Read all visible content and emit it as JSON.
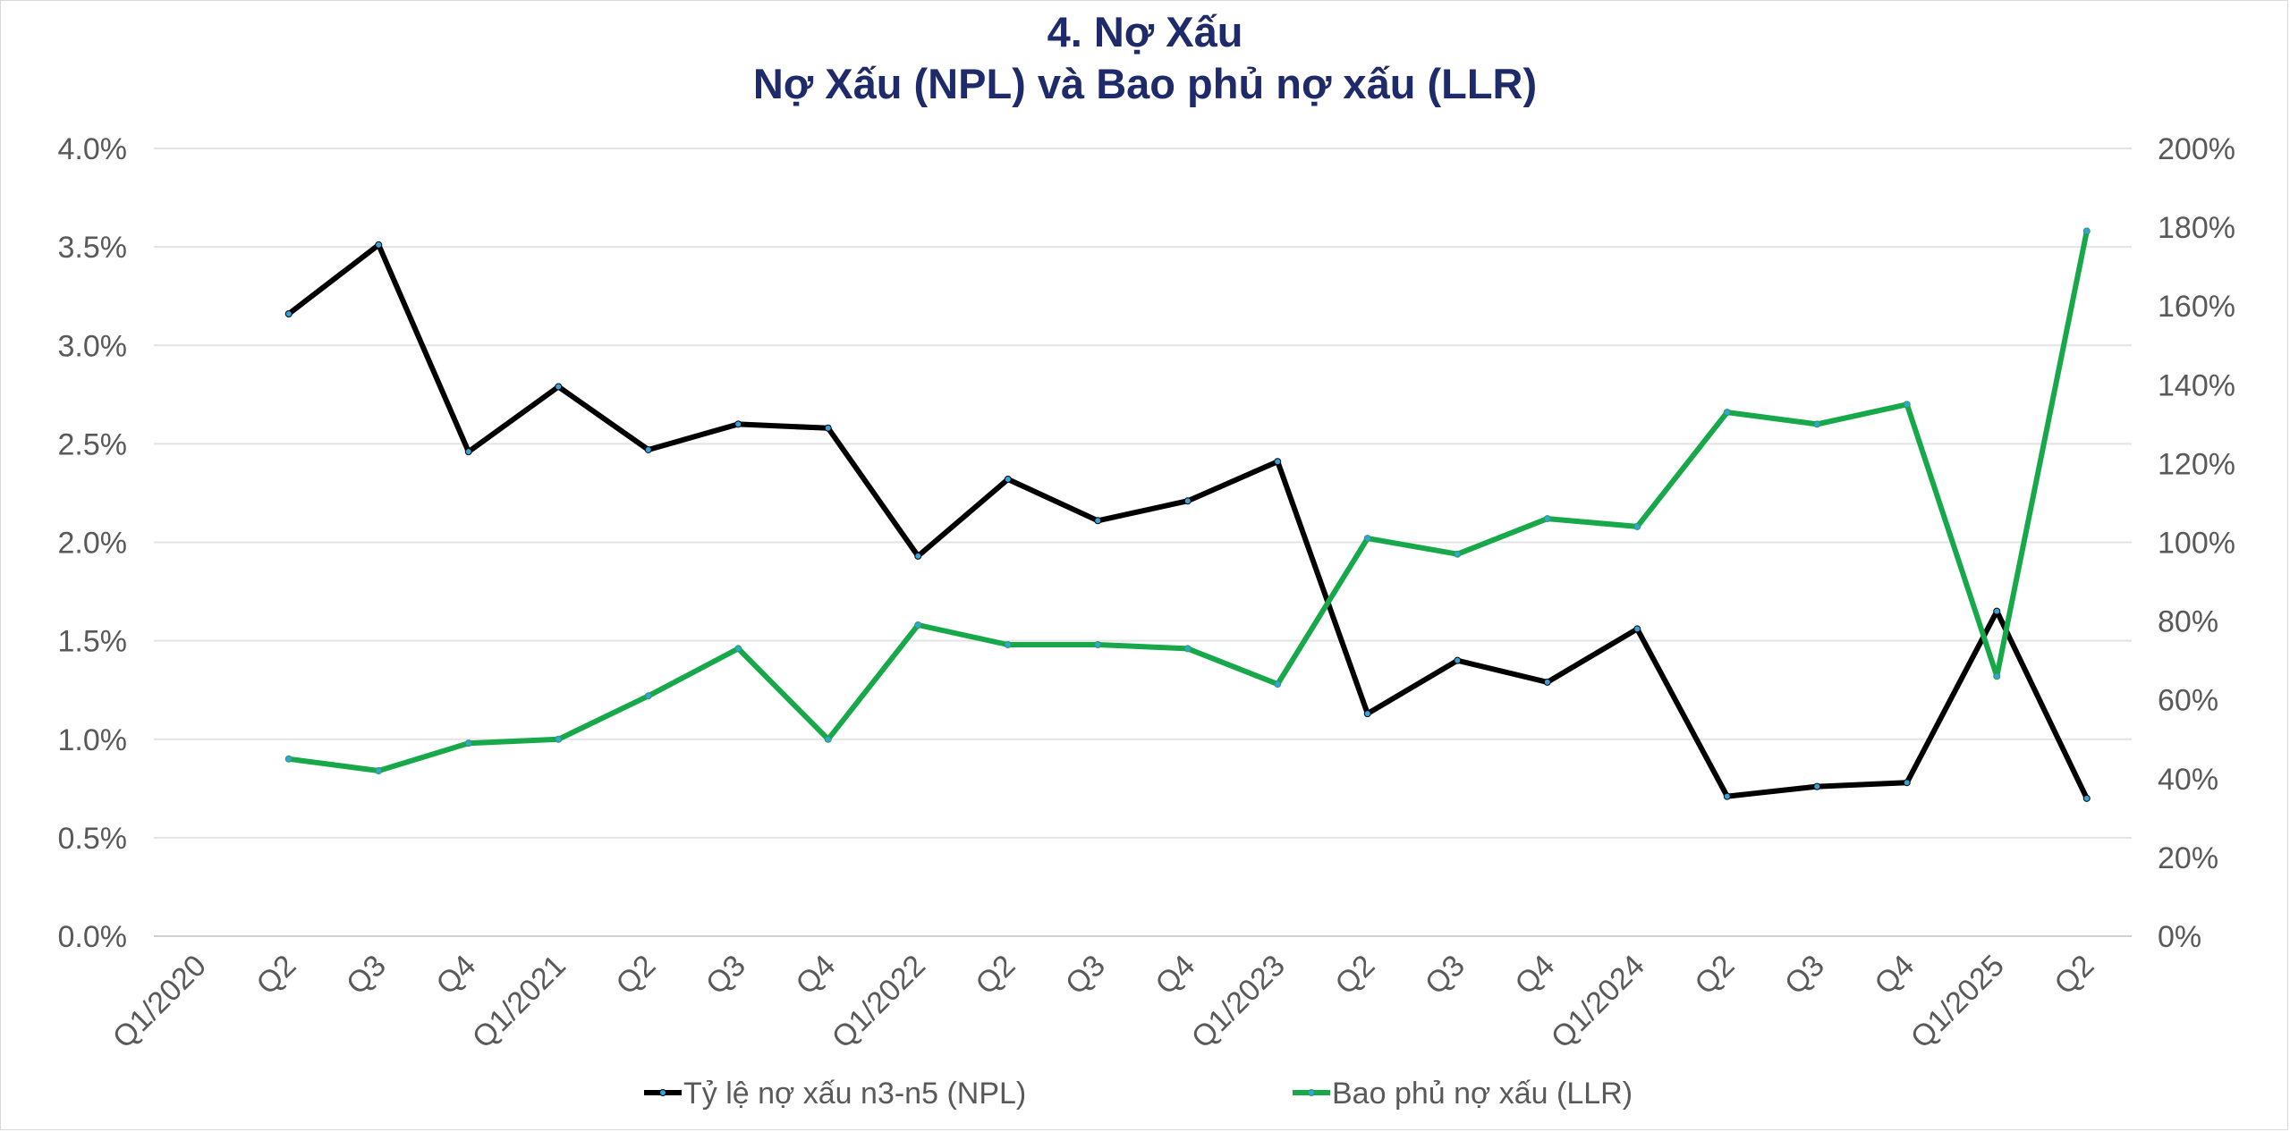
{
  "chart_data": {
    "type": "line",
    "title": "4. Nợ Xấu",
    "subtitle": "Nợ Xấu (NPL) và Bao phủ nợ xấu (LLR)",
    "categories": [
      "Q1/2020",
      "Q2",
      "Q3",
      "Q4",
      "Q1/2021",
      "Q2",
      "Q3",
      "Q4",
      "Q1/2022",
      "Q2",
      "Q3",
      "Q4",
      "Q1/2023",
      "Q2",
      "Q3",
      "Q4",
      "Q1/2024",
      "Q2",
      "Q3",
      "Q4",
      "Q1/2025",
      "Q2"
    ],
    "y_left": {
      "ylim": [
        0,
        4.0
      ],
      "ticks": [
        "0.0%",
        "0.5%",
        "1.0%",
        "1.5%",
        "2.0%",
        "2.5%",
        "3.0%",
        "3.5%",
        "4.0%"
      ]
    },
    "y_right": {
      "ylim": [
        0,
        200
      ],
      "ticks": [
        "0%",
        "20%",
        "40%",
        "60%",
        "80%",
        "100%",
        "120%",
        "140%",
        "160%",
        "180%",
        "200%"
      ]
    },
    "grid": true,
    "legend_position": "bottom",
    "series": [
      {
        "name": "Tỷ lệ nợ xấu n3-n5 (NPL)",
        "axis": "left",
        "unit": "%",
        "color": "#000000",
        "values": [
          null,
          3.16,
          3.51,
          2.46,
          2.79,
          2.47,
          2.6,
          2.58,
          1.93,
          2.32,
          2.11,
          2.21,
          2.41,
          1.13,
          1.4,
          1.29,
          1.56,
          0.71,
          0.76,
          0.78,
          1.65,
          0.7
        ]
      },
      {
        "name": "Bao phủ nợ xấu (LLR)",
        "axis": "right",
        "unit": "%",
        "color": "#17a84a",
        "values": [
          null,
          45,
          42,
          49,
          50,
          61,
          73,
          50,
          79,
          74,
          74,
          73,
          64,
          101,
          97,
          106,
          104,
          133,
          130,
          135,
          66,
          179
        ]
      }
    ]
  }
}
